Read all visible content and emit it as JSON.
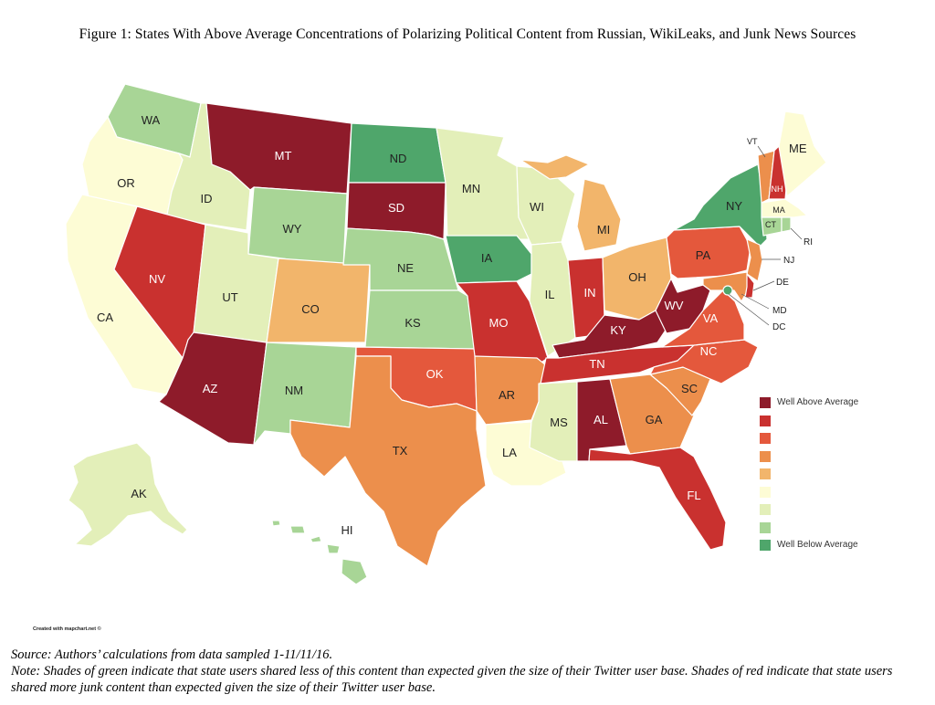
{
  "title": "Figure 1:  States With Above Average Concentrations of Polarizing Political Content from Russian, WikiLeaks, and Junk News Sources",
  "palette": {
    "c1": "#8e1b2a",
    "c2": "#c9312f",
    "c3": "#e4583c",
    "c4": "#ec8f4c",
    "c5": "#f2b56b",
    "c6": "#fdfcd5",
    "c7": "#e3efb9",
    "c8": "#a8d596",
    "c9": "#4fa66b"
  },
  "legend": {
    "top_label": "Well Above Average",
    "bottom_label": "Well Below Average",
    "levels": [
      "c1",
      "c2",
      "c3",
      "c4",
      "c5",
      "c6",
      "c7",
      "c8",
      "c9"
    ]
  },
  "states": {
    "WA": {
      "label": "WA",
      "level": "c8"
    },
    "OR": {
      "label": "OR",
      "level": "c6"
    },
    "CA": {
      "label": "CA",
      "level": "c6"
    },
    "ID": {
      "label": "ID",
      "level": "c7"
    },
    "NV": {
      "label": "NV",
      "level": "c2"
    },
    "UT": {
      "label": "UT",
      "level": "c7"
    },
    "AZ": {
      "label": "AZ",
      "level": "c1"
    },
    "MT": {
      "label": "MT",
      "level": "c1"
    },
    "WY": {
      "label": "WY",
      "level": "c8"
    },
    "CO": {
      "label": "CO",
      "level": "c5"
    },
    "NM": {
      "label": "NM",
      "level": "c8"
    },
    "ND": {
      "label": "ND",
      "level": "c9"
    },
    "SD": {
      "label": "SD",
      "level": "c1"
    },
    "NE": {
      "label": "NE",
      "level": "c8"
    },
    "KS": {
      "label": "KS",
      "level": "c8"
    },
    "OK": {
      "label": "OK",
      "level": "c3"
    },
    "TX": {
      "label": "TX",
      "level": "c4"
    },
    "MN": {
      "label": "MN",
      "level": "c7"
    },
    "IA": {
      "label": "IA",
      "level": "c9"
    },
    "MO": {
      "label": "MO",
      "level": "c2"
    },
    "AR": {
      "label": "AR",
      "level": "c4"
    },
    "LA": {
      "label": "LA",
      "level": "c6"
    },
    "WI": {
      "label": "WI",
      "level": "c7"
    },
    "IL": {
      "label": "IL",
      "level": "c7"
    },
    "MI": {
      "label": "MI",
      "level": "c5"
    },
    "IN": {
      "label": "IN",
      "level": "c2"
    },
    "OH": {
      "label": "OH",
      "level": "c5"
    },
    "KY": {
      "label": "KY",
      "level": "c1"
    },
    "TN": {
      "label": "TN",
      "level": "c2"
    },
    "MS": {
      "label": "MS",
      "level": "c7"
    },
    "AL": {
      "label": "AL",
      "level": "c1"
    },
    "GA": {
      "label": "GA",
      "level": "c4"
    },
    "FL": {
      "label": "FL",
      "level": "c2"
    },
    "SC": {
      "label": "SC",
      "level": "c4"
    },
    "NC": {
      "label": "NC",
      "level": "c3"
    },
    "VA": {
      "label": "VA",
      "level": "c3"
    },
    "WV": {
      "label": "WV",
      "level": "c1"
    },
    "PA": {
      "label": "PA",
      "level": "c3"
    },
    "NY": {
      "label": "NY",
      "level": "c9"
    },
    "VT": {
      "label": "VT",
      "level": "c4"
    },
    "NH": {
      "label": "NH",
      "level": "c2"
    },
    "ME": {
      "label": "ME",
      "level": "c6"
    },
    "MA": {
      "label": "MA",
      "level": "c6"
    },
    "CT": {
      "label": "CT",
      "level": "c8"
    },
    "RI": {
      "label": "RI",
      "level": "c8"
    },
    "NJ": {
      "label": "NJ",
      "level": "c4"
    },
    "DE": {
      "label": "DE",
      "level": "c2"
    },
    "MD": {
      "label": "MD",
      "level": "c4"
    },
    "DC": {
      "label": "DC",
      "level": "c9"
    },
    "AK": {
      "label": "AK",
      "level": "c7"
    },
    "HI": {
      "label": "HI",
      "level": "c8"
    }
  },
  "credit": "Created with mapchart.net ©",
  "source": "Source: Authors’ calculations from data sampled 1-11/11/16.",
  "note": "Note: Shades of green indicate that state users shared less of this content than expected given the size of their Twitter user base. Shades of red indicate that state users shared more junk content than expected given the size of their Twitter user base."
}
